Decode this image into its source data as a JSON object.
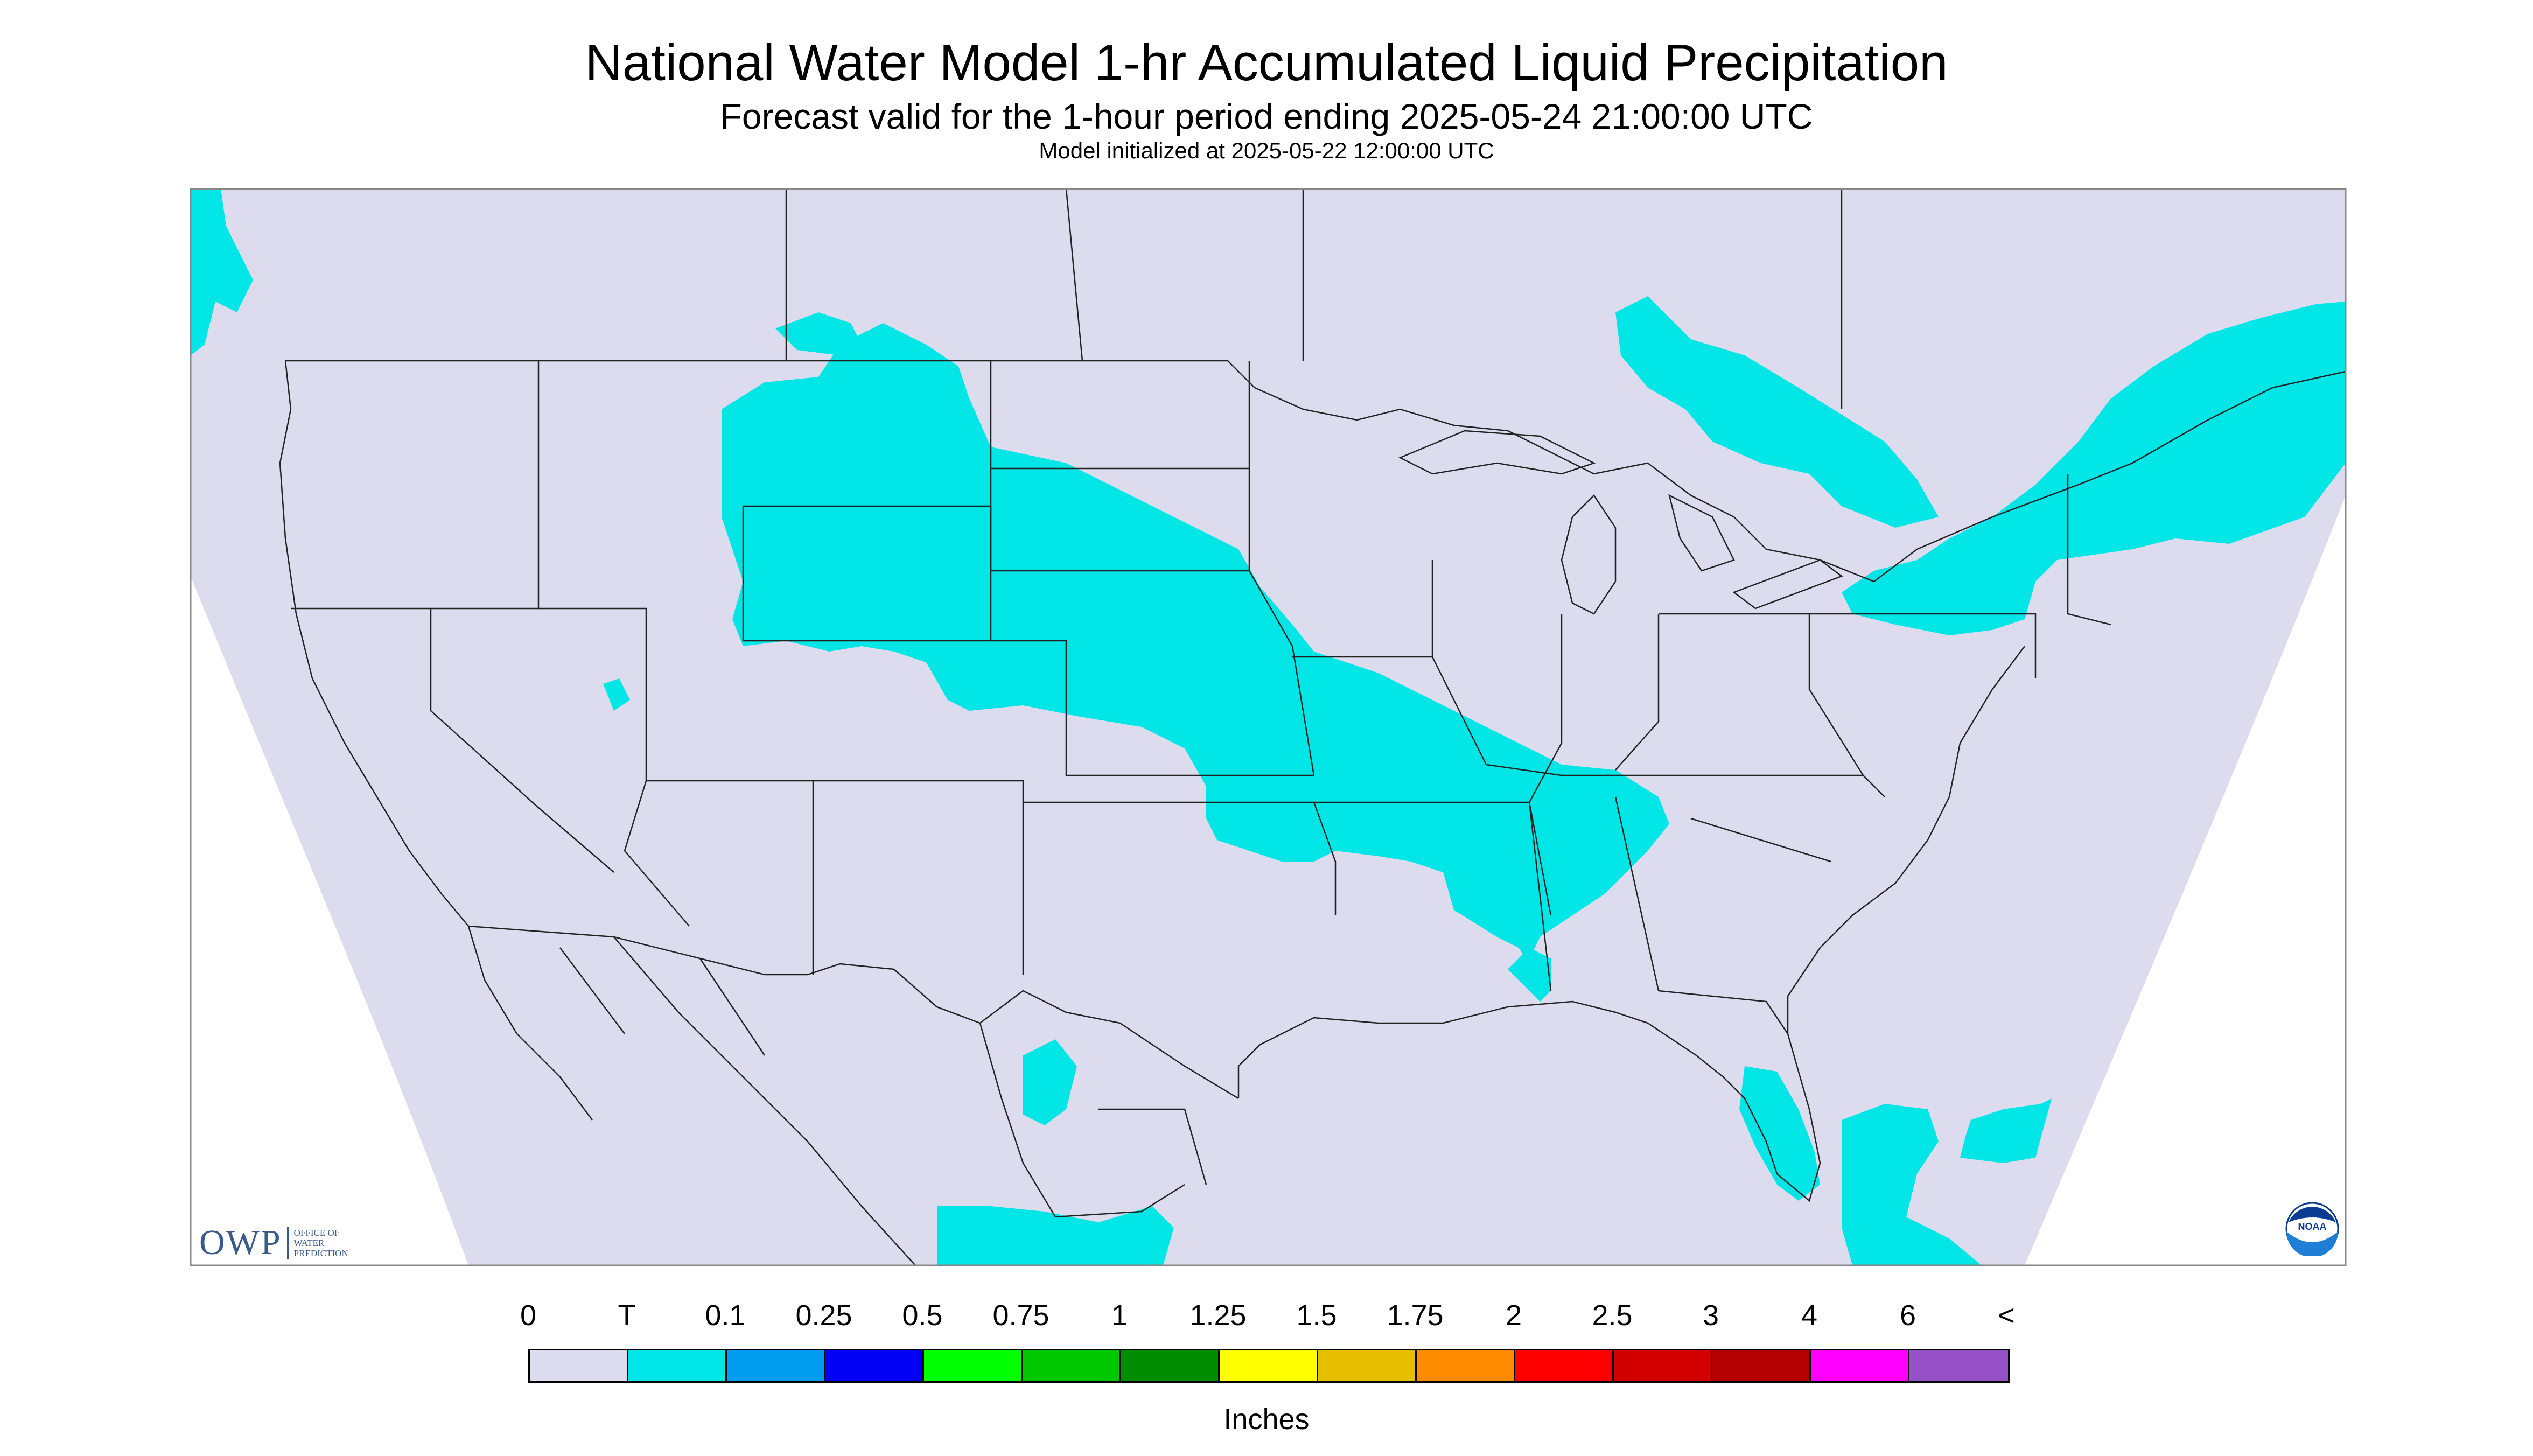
{
  "header": {
    "title": "National Water Model 1-hr Accumulated Liquid Precipitation",
    "subtitle": "Forecast valid for the 1-hour period ending 2025-05-24 21:00:00 UTC",
    "init": "Model initialized at 2025-05-22 12:00:00 UTC"
  },
  "map": {
    "background_color": "#dcdcee",
    "outside_color": "#ffffff",
    "precip_color": "#00e6e6",
    "boundary_color": "#222222"
  },
  "legend": {
    "tick_labels": [
      "0",
      "T",
      "0.1",
      "0.25",
      "0.5",
      "0.75",
      "1",
      "1.25",
      "1.5",
      "1.75",
      "2",
      "2.5",
      "3",
      "4",
      "6",
      "<"
    ],
    "colors": [
      "#dcdcee",
      "#00e6e6",
      "#009cf0",
      "#0000f5",
      "#00ff00",
      "#00c800",
      "#008c00",
      "#ffff00",
      "#e6be00",
      "#ff8c00",
      "#ff0000",
      "#d20000",
      "#b40000",
      "#ff00ff",
      "#9650c8"
    ],
    "units": "Inches"
  },
  "logos": {
    "owp_mark": "OWP",
    "owp_text": [
      "OFFICE OF",
      "WATER",
      "PREDICTION"
    ],
    "noaa_text": "NOAA"
  }
}
